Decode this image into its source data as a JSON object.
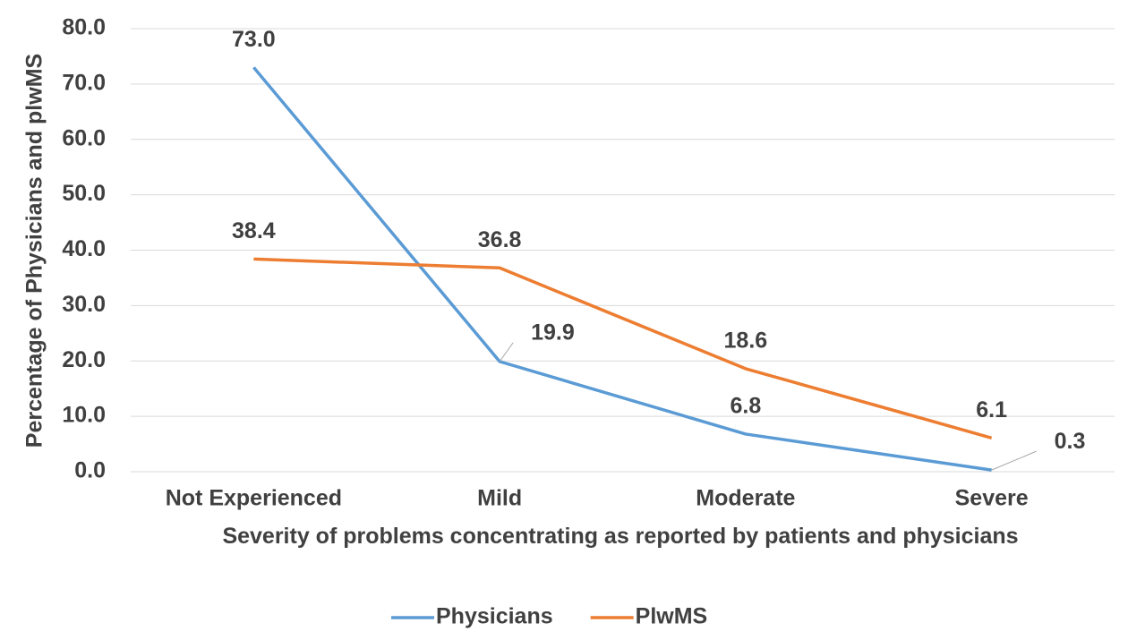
{
  "chart_data": {
    "type": "line",
    "categories": [
      "Not Experienced",
      "Mild",
      "Moderate",
      "Severe"
    ],
    "series": [
      {
        "name": "Physicians",
        "color": "#5b9bd5",
        "values": [
          73.0,
          19.9,
          6.8,
          0.3
        ],
        "value_labels": [
          "73.0",
          "19.9",
          "6.8",
          "0.3"
        ]
      },
      {
        "name": "PlwMS",
        "color": "#ed7d31",
        "values": [
          38.4,
          36.8,
          18.6,
          6.1
        ],
        "value_labels": [
          "38.4",
          "36.8",
          "18.6",
          "6.1"
        ]
      }
    ],
    "ylim": [
      0,
      80
    ],
    "yticks": [
      {
        "value": 0,
        "label": "0.0"
      },
      {
        "value": 10,
        "label": "10.0"
      },
      {
        "value": 20,
        "label": "20.0"
      },
      {
        "value": 30,
        "label": "30.0"
      },
      {
        "value": 40,
        "label": "40.0"
      },
      {
        "value": 50,
        "label": "50.0"
      },
      {
        "value": 60,
        "label": "60.0"
      },
      {
        "value": 70,
        "label": "70.0"
      },
      {
        "value": 80,
        "label": "80.0"
      }
    ],
    "y_label": "Percentage of Physicians and plwMS",
    "x_label": "Severity of problems concentrating as reported by patients and physicians",
    "grid": true,
    "legend": "bottom"
  }
}
